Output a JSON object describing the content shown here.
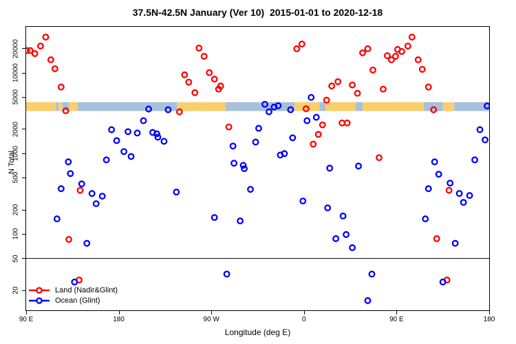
{
  "title": "37.5N-42.5N January (Ver 10)  2015-01-01 to 2020-12-18",
  "axes": {
    "y_label": "N Total",
    "x_label": "Longitude (deg E)",
    "y_scale": "log",
    "y_ticks": [
      20000,
      10000,
      5000,
      2000,
      1000,
      500,
      200,
      100,
      50,
      20
    ],
    "x_ticks": [
      {
        "label": "90 E",
        "deg": 0
      },
      {
        "label": "180",
        "deg": 90
      },
      {
        "label": "90 W",
        "deg": 180
      },
      {
        "label": "0",
        "deg": 270
      },
      {
        "label": "90 E",
        "deg": 360
      },
      {
        "label": "180",
        "deg": 450
      }
    ]
  },
  "legend": {
    "items": [
      {
        "label": "Land (Nadir&Glint)",
        "color": "#ff0000"
      },
      {
        "label": "Ocean (Glint)",
        "color": "#0000ff"
      }
    ]
  },
  "chart_data": {
    "type": "scatter",
    "title": "37.5N-42.5N January (Ver 10)  2015-01-01 to 2020-12-18",
    "xlabel": "Longitude (deg E)",
    "ylabel": "N Total",
    "y_scale": "log",
    "y_top_value": 37000,
    "y_bottom_value": 11,
    "x_axis_note": "x = degrees east of plot left edge; left edge is 90E, axis runs 90E -> 180 -> 90W -> 0 -> 90E -> 180 (450 deg total)",
    "reference_line_y": 50,
    "grid": false,
    "series": [
      {
        "name": "Land (Nadir&Glint)",
        "color": "#ff0000",
        "points": [
          [
            0.5,
            19000
          ],
          [
            4,
            19000
          ],
          [
            8.5,
            17400
          ],
          [
            14,
            21600
          ],
          [
            19,
            27900
          ],
          [
            24,
            14600
          ],
          [
            28,
            11300
          ],
          [
            34,
            6700
          ],
          [
            38.5,
            3400
          ],
          [
            41.5,
            86
          ],
          [
            51.5,
            27
          ],
          [
            52.5,
            350
          ],
          [
            149,
            3300
          ],
          [
            154,
            9500
          ],
          [
            158,
            7700
          ],
          [
            164,
            5700
          ],
          [
            168,
            20400
          ],
          [
            173,
            16100
          ],
          [
            178,
            10100
          ],
          [
            183,
            8400
          ],
          [
            187,
            6300
          ],
          [
            189,
            6900
          ],
          [
            197,
            2140
          ],
          [
            263,
            20000
          ],
          [
            268,
            22900
          ],
          [
            272,
            3600
          ],
          [
            279,
            1310
          ],
          [
            284,
            1730
          ],
          [
            288,
            2270
          ],
          [
            292,
            4600
          ],
          [
            297,
            6900
          ],
          [
            303,
            7800
          ],
          [
            307,
            2400
          ],
          [
            312,
            2400
          ],
          [
            317,
            7100
          ],
          [
            322,
            5600
          ],
          [
            327,
            17800
          ],
          [
            332,
            20000
          ],
          [
            337,
            10900
          ],
          [
            343,
            890
          ],
          [
            347,
            6300
          ],
          [
            351,
            16400
          ],
          [
            355,
            14600
          ],
          [
            359,
            16100
          ],
          [
            361,
            19600
          ],
          [
            365,
            18500
          ],
          [
            371,
            21600
          ],
          [
            375,
            27900
          ],
          [
            381,
            14600
          ],
          [
            385,
            11100
          ],
          [
            391,
            6700
          ],
          [
            396,
            3500
          ],
          [
            399,
            88
          ],
          [
            409,
            27
          ],
          [
            411,
            350
          ]
        ]
      },
      {
        "name": "Ocean (Glint)",
        "color": "#0000ff",
        "points": [
          [
            30,
            155
          ],
          [
            34,
            367
          ],
          [
            41,
            790
          ],
          [
            43,
            565
          ],
          [
            47,
            25.5
          ],
          [
            54,
            421
          ],
          [
            59,
            77
          ],
          [
            64,
            320
          ],
          [
            68,
            239
          ],
          [
            74,
            296
          ],
          [
            78,
            836
          ],
          [
            83,
            1980
          ],
          [
            88,
            1450
          ],
          [
            95,
            1060
          ],
          [
            99,
            1870
          ],
          [
            102,
            920
          ],
          [
            108,
            1800
          ],
          [
            114,
            2560
          ],
          [
            119,
            3570
          ],
          [
            123,
            1830
          ],
          [
            127,
            1760
          ],
          [
            128,
            1600
          ],
          [
            134,
            1420
          ],
          [
            138,
            3500
          ],
          [
            146,
            333
          ],
          [
            183,
            161
          ],
          [
            195,
            32
          ],
          [
            201,
            1240
          ],
          [
            202,
            760
          ],
          [
            208,
            146
          ],
          [
            211,
            715
          ],
          [
            212,
            650
          ],
          [
            218,
            360
          ],
          [
            223,
            1390
          ],
          [
            226,
            2060
          ],
          [
            232,
            4090
          ],
          [
            236,
            3300
          ],
          [
            241,
            3780
          ],
          [
            245,
            3930
          ],
          [
            247,
            960
          ],
          [
            251,
            1000
          ],
          [
            257,
            3500
          ],
          [
            259,
            1570
          ],
          [
            269,
            258
          ],
          [
            273,
            2560
          ],
          [
            277,
            4980
          ],
          [
            282,
            2820
          ],
          [
            293,
            212
          ],
          [
            295,
            660
          ],
          [
            301,
            88
          ],
          [
            308,
            168
          ],
          [
            311,
            99
          ],
          [
            317,
            68
          ],
          [
            323,
            700
          ],
          [
            332,
            15
          ],
          [
            336,
            32
          ],
          [
            388,
            155
          ],
          [
            391,
            367
          ],
          [
            397,
            790
          ],
          [
            401,
            555
          ],
          [
            405,
            25.5
          ],
          [
            412,
            430
          ],
          [
            417,
            77
          ],
          [
            421,
            320
          ],
          [
            425,
            248
          ],
          [
            431,
            302
          ],
          [
            436,
            836
          ],
          [
            441,
            1980
          ],
          [
            446,
            1480
          ],
          [
            448,
            3900
          ]
        ]
      }
    ],
    "map_strip": {
      "description": "land/ocean longitude strip drawn across plot near N=4000",
      "y_top_frac": 0.2657,
      "height_frac": 0.0314,
      "land_color": "#f9cf6d",
      "ocean_color": "#a9c0da",
      "segments": [
        {
          "from": 0,
          "to": 29,
          "type": "land"
        },
        {
          "from": 29,
          "to": 31.5,
          "type": "ocean"
        },
        {
          "from": 31.5,
          "to": 35,
          "type": "land"
        },
        {
          "from": 35,
          "to": 42,
          "type": "ocean"
        },
        {
          "from": 42,
          "to": 50,
          "type": "land"
        },
        {
          "from": 50,
          "to": 146.5,
          "type": "ocean"
        },
        {
          "from": 146.5,
          "to": 193.5,
          "type": "land"
        },
        {
          "from": 193.5,
          "to": 261,
          "type": "ocean"
        },
        {
          "from": 261,
          "to": 285,
          "type": "land"
        },
        {
          "from": 285,
          "to": 291,
          "type": "ocean"
        },
        {
          "from": 291,
          "to": 320,
          "type": "land"
        },
        {
          "from": 320,
          "to": 327,
          "type": "ocean"
        },
        {
          "from": 327,
          "to": 386.5,
          "type": "land"
        },
        {
          "from": 386.5,
          "to": 405,
          "type": "ocean"
        },
        {
          "from": 405,
          "to": 416,
          "type": "land"
        },
        {
          "from": 416,
          "to": 450,
          "type": "ocean"
        }
      ]
    }
  }
}
